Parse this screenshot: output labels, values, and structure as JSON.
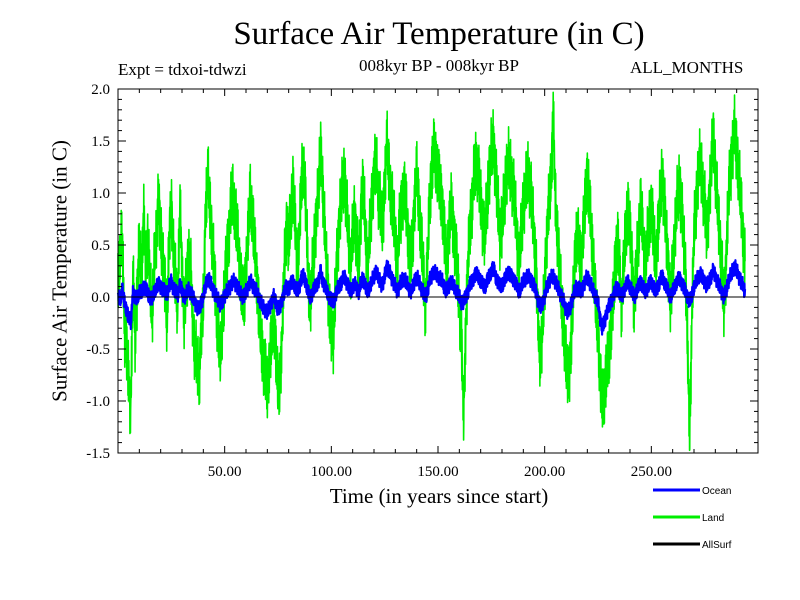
{
  "chart_data": {
    "type": "line",
    "title": "Surface Air Temperature (in C)",
    "subtitle": "008kyr BP - 008kyr BP",
    "experiment": "Expt = tdxoi-tdwzi",
    "season": "ALL_MONTHS",
    "xlabel": "Time (in years since start)",
    "ylabel": "Surface Air Temperature (in C)",
    "xlim": [
      0,
      300
    ],
    "ylim": [
      -1.5,
      2.0
    ],
    "x_ticks": [
      "50.00",
      "100.00",
      "150.00",
      "200.00",
      "250.00"
    ],
    "y_ticks": [
      "-1.5",
      "-1.0",
      "-0.5",
      "0.0",
      "0.5",
      "1.0",
      "1.5",
      "2.0"
    ],
    "grid": false,
    "zero_line": true,
    "legend_position": "bottom-right",
    "x_resolution": "monthly",
    "series": [
      {
        "name": "Ocean",
        "color": "#0000ff",
        "x_start": 0,
        "x_step": 1,
        "values": [
          0.02,
          -0.03,
          0.08,
          -0.05,
          -0.12,
          -0.2,
          -0.25,
          0.05,
          -0.02,
          0.0,
          0.05,
          0.04,
          0.1,
          0.08,
          0.03,
          0.0,
          -0.02,
          0.05,
          0.1,
          0.12,
          0.1,
          0.07,
          0.05,
          0.03,
          0.1,
          0.15,
          0.08,
          0.05,
          0.02,
          0.12,
          0.05,
          0.0,
          0.03,
          0.07,
          0.05,
          0.0,
          -0.05,
          -0.1,
          -0.12,
          -0.05,
          0.0,
          0.1,
          0.18,
          0.15,
          0.1,
          0.05,
          0.0,
          -0.02,
          -0.08,
          -0.05,
          0.02,
          0.05,
          0.08,
          0.12,
          0.15,
          0.13,
          0.1,
          0.05,
          0.02,
          0.0,
          0.05,
          0.1,
          0.15,
          0.12,
          0.08,
          0.05,
          0.0,
          -0.05,
          -0.1,
          -0.12,
          -0.15,
          -0.1,
          -0.05,
          0.0,
          -0.05,
          -0.12,
          -0.1,
          -0.02,
          0.05,
          0.1,
          0.08,
          0.12,
          0.15,
          0.1,
          0.05,
          0.1,
          0.18,
          0.2,
          0.15,
          0.05,
          0.0,
          0.03,
          0.08,
          0.12,
          0.15,
          0.25,
          0.15,
          0.1,
          0.05,
          0.0,
          -0.03,
          -0.05,
          0.02,
          0.08,
          0.12,
          0.15,
          0.2,
          0.15,
          0.1,
          0.05,
          0.1,
          0.12,
          0.08,
          0.05,
          0.15,
          0.18,
          0.1,
          0.05,
          0.1,
          0.15,
          0.2,
          0.25,
          0.18,
          0.15,
          0.1,
          0.2,
          0.3,
          0.25,
          0.2,
          0.15,
          0.1,
          0.05,
          0.12,
          0.15,
          0.18,
          0.15,
          0.1,
          0.05,
          0.08,
          0.15,
          0.2,
          0.15,
          0.1,
          0.05,
          0.0,
          0.05,
          0.15,
          0.2,
          0.25,
          0.22,
          0.2,
          0.18,
          0.15,
          0.1,
          0.05,
          0.1,
          0.15,
          0.12,
          0.08,
          0.05,
          0.0,
          -0.05,
          -0.05,
          0.0,
          0.05,
          0.12,
          0.15,
          0.2,
          0.22,
          0.2,
          0.15,
          0.12,
          0.1,
          0.15,
          0.2,
          0.25,
          0.28,
          0.2,
          0.15,
          0.1,
          0.12,
          0.15,
          0.2,
          0.25,
          0.2,
          0.18,
          0.15,
          0.1,
          0.05,
          0.1,
          0.15,
          0.18,
          0.2,
          0.18,
          0.15,
          0.1,
          0.05,
          -0.05,
          -0.1,
          -0.05,
          0.0,
          0.1,
          0.15,
          0.18,
          0.2,
          0.15,
          0.1,
          0.05,
          0.0,
          -0.05,
          -0.12,
          -0.15,
          -0.1,
          -0.02,
          0.05,
          0.1,
          0.08,
          0.05,
          0.1,
          0.15,
          0.2,
          0.15,
          0.1,
          0.05,
          0.0,
          -0.05,
          -0.2,
          -0.3,
          -0.25,
          -0.15,
          -0.1,
          -0.05,
          0.0,
          0.05,
          0.1,
          0.05,
          0.0,
          0.05,
          0.1,
          0.15,
          0.1,
          0.05,
          0.0,
          0.05,
          0.1,
          0.15,
          0.1,
          0.05,
          0.08,
          0.12,
          0.15,
          0.1,
          0.05,
          0.1,
          0.15,
          0.2,
          0.15,
          0.1,
          0.05,
          0.0,
          0.05,
          0.1,
          0.15,
          0.18,
          0.15,
          0.1,
          0.05,
          0.0,
          -0.05,
          0.02,
          0.1,
          0.15,
          0.2,
          0.22,
          0.18,
          0.15,
          0.1,
          0.15,
          0.2,
          0.25,
          0.2,
          0.15,
          0.1,
          0.05,
          0.0,
          0.05,
          0.15,
          0.2,
          0.25,
          0.3,
          0.25,
          0.2,
          0.15,
          0.1,
          0.05
        ]
      },
      {
        "name": "Land",
        "color": "#00ee00",
        "x_start": 0,
        "x_step": 1,
        "values": [
          0.15,
          0.4,
          0.6,
          -0.3,
          -0.5,
          -0.8,
          -1.1,
          0.2,
          -0.4,
          0.05,
          0.5,
          0.2,
          0.8,
          0.3,
          0.6,
          0.1,
          -0.2,
          0.4,
          0.5,
          1.0,
          0.6,
          0.3,
          0.2,
          -0.3,
          0.6,
          0.9,
          0.4,
          0.2,
          -0.1,
          0.9,
          0.3,
          -0.2,
          0.1,
          0.4,
          0.3,
          -0.2,
          -0.5,
          -0.6,
          -0.8,
          -0.3,
          -0.1,
          0.8,
          1.2,
          0.9,
          0.6,
          0.3,
          -0.1,
          -0.3,
          -0.6,
          -0.2,
          0.1,
          0.4,
          0.6,
          0.9,
          1.0,
          0.8,
          0.6,
          0.3,
          0.1,
          -0.1,
          0.3,
          0.6,
          1.0,
          0.8,
          0.5,
          0.2,
          -0.1,
          -0.4,
          -0.6,
          -0.7,
          -0.9,
          -0.6,
          -0.4,
          -0.2,
          -0.5,
          -0.9,
          -0.8,
          -0.3,
          0.3,
          0.7,
          0.5,
          0.8,
          1.1,
          0.7,
          0.3,
          0.6,
          1.1,
          1.3,
          0.9,
          0.3,
          -0.1,
          0.2,
          0.5,
          0.8,
          1.0,
          1.5,
          1.0,
          0.6,
          0.3,
          -0.2,
          -0.3,
          -0.4,
          0.1,
          0.5,
          0.8,
          1.0,
          1.2,
          0.9,
          0.6,
          0.3,
          0.6,
          0.8,
          0.5,
          0.3,
          0.9,
          1.1,
          0.6,
          0.3,
          0.6,
          0.9,
          1.2,
          1.3,
          1.0,
          0.9,
          0.6,
          1.1,
          1.5,
          1.2,
          1.0,
          0.8,
          0.6,
          0.3,
          0.7,
          0.9,
          1.0,
          0.9,
          0.6,
          0.3,
          0.5,
          0.9,
          1.2,
          0.9,
          0.6,
          0.3,
          -0.1,
          0.3,
          0.9,
          1.2,
          1.4,
          1.3,
          1.2,
          1.0,
          0.9,
          0.6,
          0.3,
          0.6,
          0.9,
          0.7,
          0.5,
          0.3,
          -0.1,
          -0.4,
          -1.15,
          -0.3,
          0.3,
          0.7,
          0.9,
          1.2,
          1.3,
          1.2,
          0.9,
          0.7,
          0.6,
          0.9,
          1.2,
          1.4,
          1.5,
          1.2,
          0.9,
          0.6,
          0.7,
          0.9,
          1.2,
          1.3,
          1.2,
          1.1,
          0.9,
          0.6,
          0.3,
          0.6,
          0.9,
          1.0,
          1.2,
          1.1,
          0.9,
          0.6,
          0.3,
          -0.3,
          -0.6,
          -0.3,
          0.1,
          0.6,
          0.9,
          1.1,
          1.8,
          0.9,
          0.6,
          0.3,
          -0.1,
          -0.3,
          -0.6,
          -0.8,
          -0.6,
          -0.2,
          0.3,
          0.6,
          0.5,
          0.3,
          0.6,
          0.9,
          1.2,
          0.9,
          0.6,
          0.3,
          -0.1,
          -0.3,
          -0.8,
          -1.0,
          -0.9,
          -0.7,
          -0.6,
          -0.3,
          -0.1,
          0.3,
          0.6,
          0.3,
          -0.1,
          0.3,
          0.6,
          0.9,
          0.6,
          0.3,
          -0.1,
          0.3,
          0.6,
          0.9,
          0.6,
          0.3,
          0.5,
          0.7,
          0.9,
          0.6,
          0.3,
          0.6,
          0.9,
          1.2,
          0.9,
          0.6,
          0.3,
          -0.1,
          0.3,
          0.6,
          0.9,
          1.1,
          0.9,
          0.6,
          0.3,
          -0.5,
          -1.35,
          -0.2,
          0.6,
          0.9,
          1.2,
          1.3,
          1.1,
          0.9,
          0.6,
          0.9,
          1.2,
          1.6,
          1.2,
          0.9,
          0.6,
          0.3,
          -0.1,
          0.3,
          0.9,
          1.2,
          1.4,
          1.6,
          1.4,
          1.2,
          0.9,
          0.6,
          0.3
        ]
      },
      {
        "name": "AllSurf",
        "color": "#000000",
        "values": []
      }
    ]
  }
}
